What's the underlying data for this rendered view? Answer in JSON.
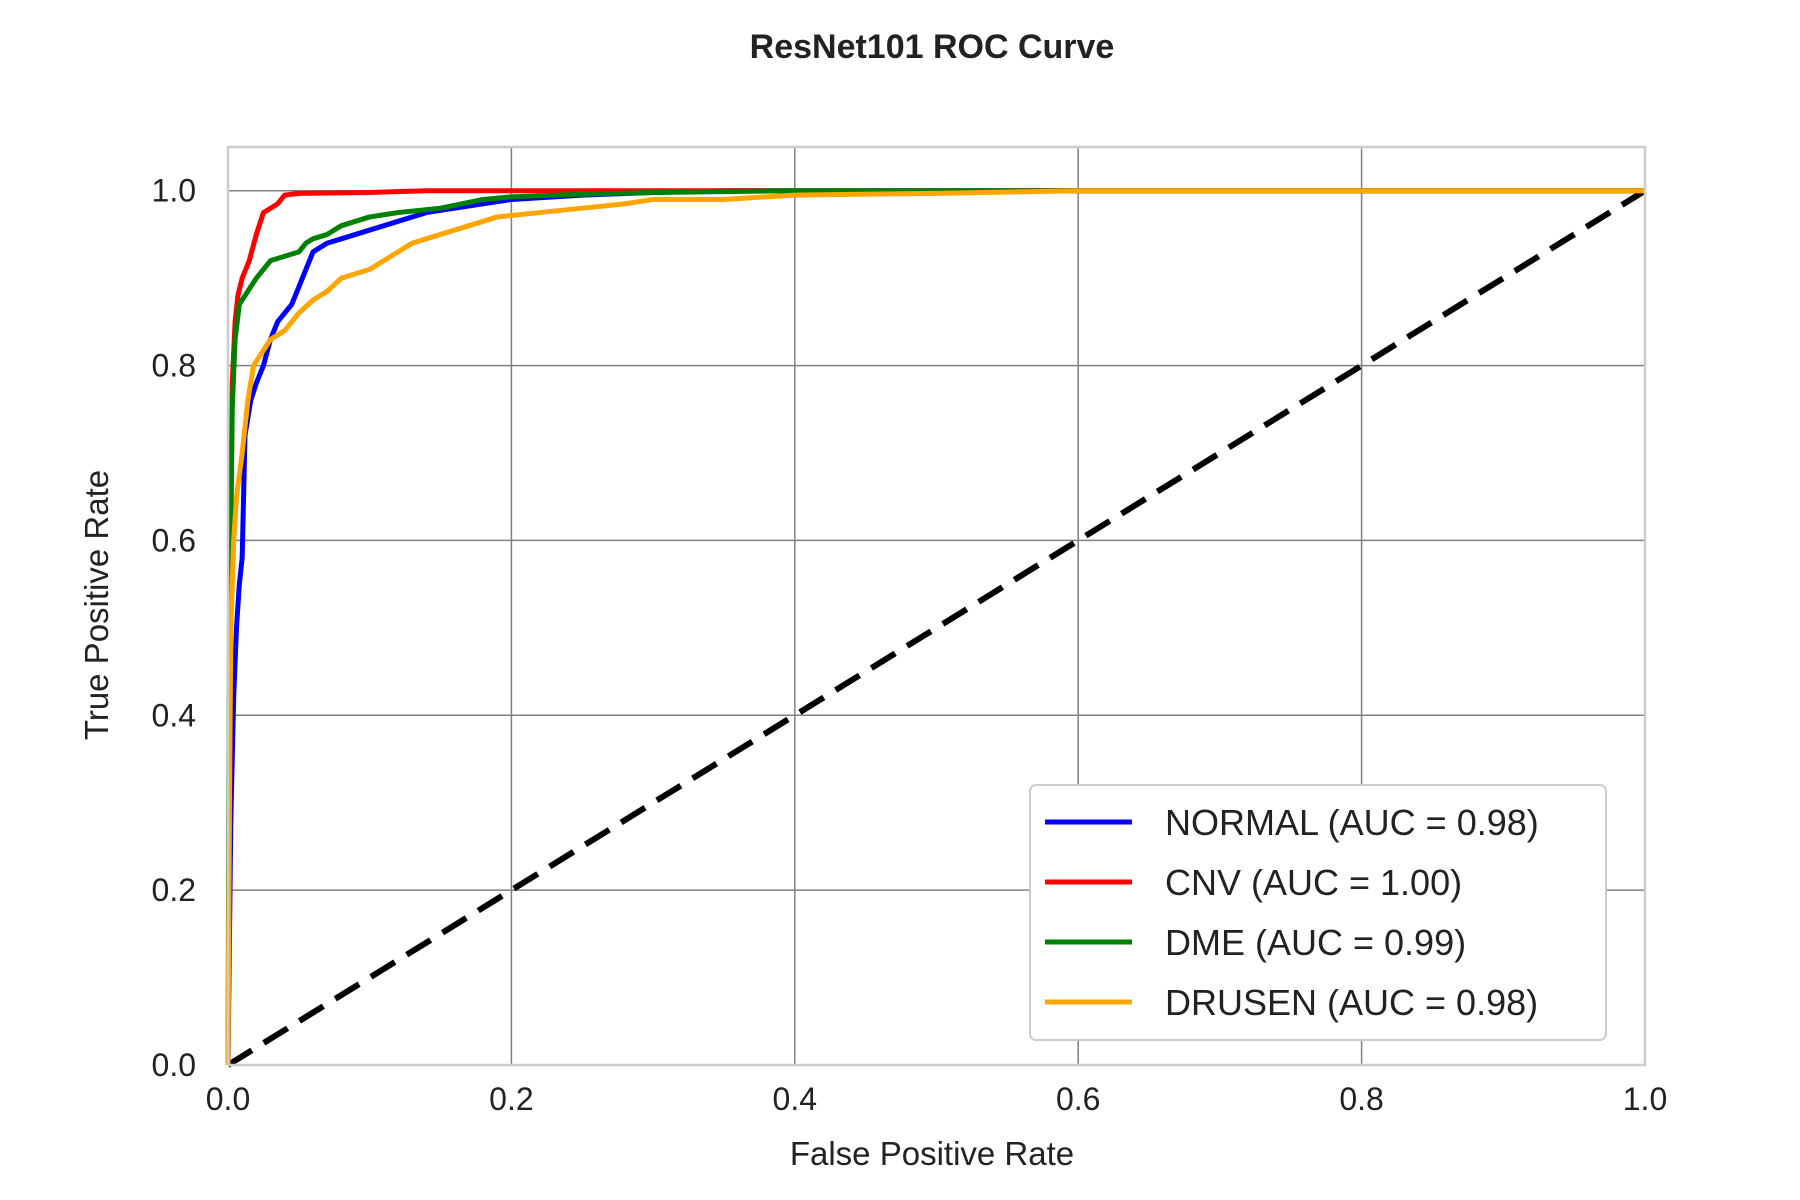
{
  "chart_data": {
    "type": "line",
    "title": "ResNet101 ROC Curve",
    "xlabel": "False Positive Rate",
    "ylabel": "True Positive Rate",
    "xlim": [
      0,
      1
    ],
    "ylim": [
      0,
      1.05
    ],
    "x_ticks": [
      "0.0",
      "0.2",
      "0.4",
      "0.6",
      "0.8",
      "1.0"
    ],
    "y_ticks": [
      "0.0",
      "0.2",
      "0.4",
      "0.6",
      "0.8",
      "1.0"
    ],
    "x_tick_values": [
      0,
      0.2,
      0.4,
      0.6,
      0.8,
      1.0
    ],
    "y_tick_values": [
      0,
      0.2,
      0.4,
      0.6,
      0.8,
      1.0
    ],
    "grid": true,
    "legend_position": "bottom-right",
    "series": [
      {
        "name": "NORMAL (AUC = 0.98)",
        "color": "#0000ff",
        "points": [
          [
            0,
            0
          ],
          [
            0.002,
            0.28
          ],
          [
            0.004,
            0.42
          ],
          [
            0.006,
            0.5
          ],
          [
            0.008,
            0.55
          ],
          [
            0.01,
            0.58
          ],
          [
            0.012,
            0.72
          ],
          [
            0.016,
            0.76
          ],
          [
            0.02,
            0.78
          ],
          [
            0.025,
            0.8
          ],
          [
            0.03,
            0.83
          ],
          [
            0.035,
            0.85
          ],
          [
            0.04,
            0.86
          ],
          [
            0.045,
            0.87
          ],
          [
            0.05,
            0.89
          ],
          [
            0.055,
            0.91
          ],
          [
            0.06,
            0.93
          ],
          [
            0.07,
            0.94
          ],
          [
            0.08,
            0.945
          ],
          [
            0.09,
            0.95
          ],
          [
            0.1,
            0.955
          ],
          [
            0.12,
            0.965
          ],
          [
            0.14,
            0.975
          ],
          [
            0.16,
            0.98
          ],
          [
            0.18,
            0.985
          ],
          [
            0.2,
            0.99
          ],
          [
            0.25,
            0.995
          ],
          [
            0.3,
            0.998
          ],
          [
            0.35,
            1.0
          ],
          [
            1.0,
            1.0
          ]
        ]
      },
      {
        "name": "CNV (AUC = 1.00)",
        "color": "#ff0000",
        "points": [
          [
            0,
            0
          ],
          [
            0.001,
            0.25
          ],
          [
            0.002,
            0.6
          ],
          [
            0.003,
            0.78
          ],
          [
            0.005,
            0.85
          ],
          [
            0.007,
            0.88
          ],
          [
            0.01,
            0.9
          ],
          [
            0.015,
            0.92
          ],
          [
            0.02,
            0.95
          ],
          [
            0.025,
            0.975
          ],
          [
            0.03,
            0.98
          ],
          [
            0.035,
            0.985
          ],
          [
            0.04,
            0.995
          ],
          [
            0.05,
            0.997
          ],
          [
            0.1,
            0.998
          ],
          [
            0.14,
            1.0
          ],
          [
            1.0,
            1.0
          ]
        ]
      },
      {
        "name": "DME (AUC = 0.99)",
        "color": "#008000",
        "points": [
          [
            0,
            0
          ],
          [
            0.001,
            0.5
          ],
          [
            0.002,
            0.62
          ],
          [
            0.003,
            0.75
          ],
          [
            0.005,
            0.83
          ],
          [
            0.008,
            0.87
          ],
          [
            0.012,
            0.88
          ],
          [
            0.016,
            0.89
          ],
          [
            0.02,
            0.9
          ],
          [
            0.025,
            0.91
          ],
          [
            0.03,
            0.92
          ],
          [
            0.04,
            0.925
          ],
          [
            0.05,
            0.93
          ],
          [
            0.055,
            0.94
          ],
          [
            0.06,
            0.945
          ],
          [
            0.07,
            0.95
          ],
          [
            0.08,
            0.96
          ],
          [
            0.09,
            0.965
          ],
          [
            0.1,
            0.97
          ],
          [
            0.12,
            0.975
          ],
          [
            0.15,
            0.98
          ],
          [
            0.18,
            0.99
          ],
          [
            0.2,
            0.993
          ],
          [
            0.25,
            0.996
          ],
          [
            0.3,
            0.998
          ],
          [
            0.4,
            1.0
          ],
          [
            1.0,
            1.0
          ]
        ]
      },
      {
        "name": "DRUSEN (AUC = 0.98)",
        "color": "#ffa500",
        "points": [
          [
            0,
            0
          ],
          [
            0.001,
            0.3
          ],
          [
            0.002,
            0.5
          ],
          [
            0.004,
            0.6
          ],
          [
            0.006,
            0.65
          ],
          [
            0.01,
            0.7
          ],
          [
            0.014,
            0.76
          ],
          [
            0.018,
            0.8
          ],
          [
            0.022,
            0.81
          ],
          [
            0.026,
            0.82
          ],
          [
            0.03,
            0.83
          ],
          [
            0.04,
            0.84
          ],
          [
            0.05,
            0.86
          ],
          [
            0.06,
            0.875
          ],
          [
            0.07,
            0.885
          ],
          [
            0.08,
            0.9
          ],
          [
            0.09,
            0.905
          ],
          [
            0.1,
            0.91
          ],
          [
            0.11,
            0.92
          ],
          [
            0.12,
            0.93
          ],
          [
            0.13,
            0.94
          ],
          [
            0.15,
            0.95
          ],
          [
            0.17,
            0.96
          ],
          [
            0.19,
            0.97
          ],
          [
            0.22,
            0.975
          ],
          [
            0.25,
            0.98
          ],
          [
            0.28,
            0.985
          ],
          [
            0.3,
            0.99
          ],
          [
            0.35,
            0.99
          ],
          [
            0.4,
            0.995
          ],
          [
            0.5,
            0.997
          ],
          [
            0.6,
            1.0
          ],
          [
            1.0,
            1.0
          ]
        ]
      }
    ],
    "reference_line": {
      "color": "#000000",
      "points": [
        [
          0,
          0
        ],
        [
          1,
          1
        ]
      ]
    }
  }
}
